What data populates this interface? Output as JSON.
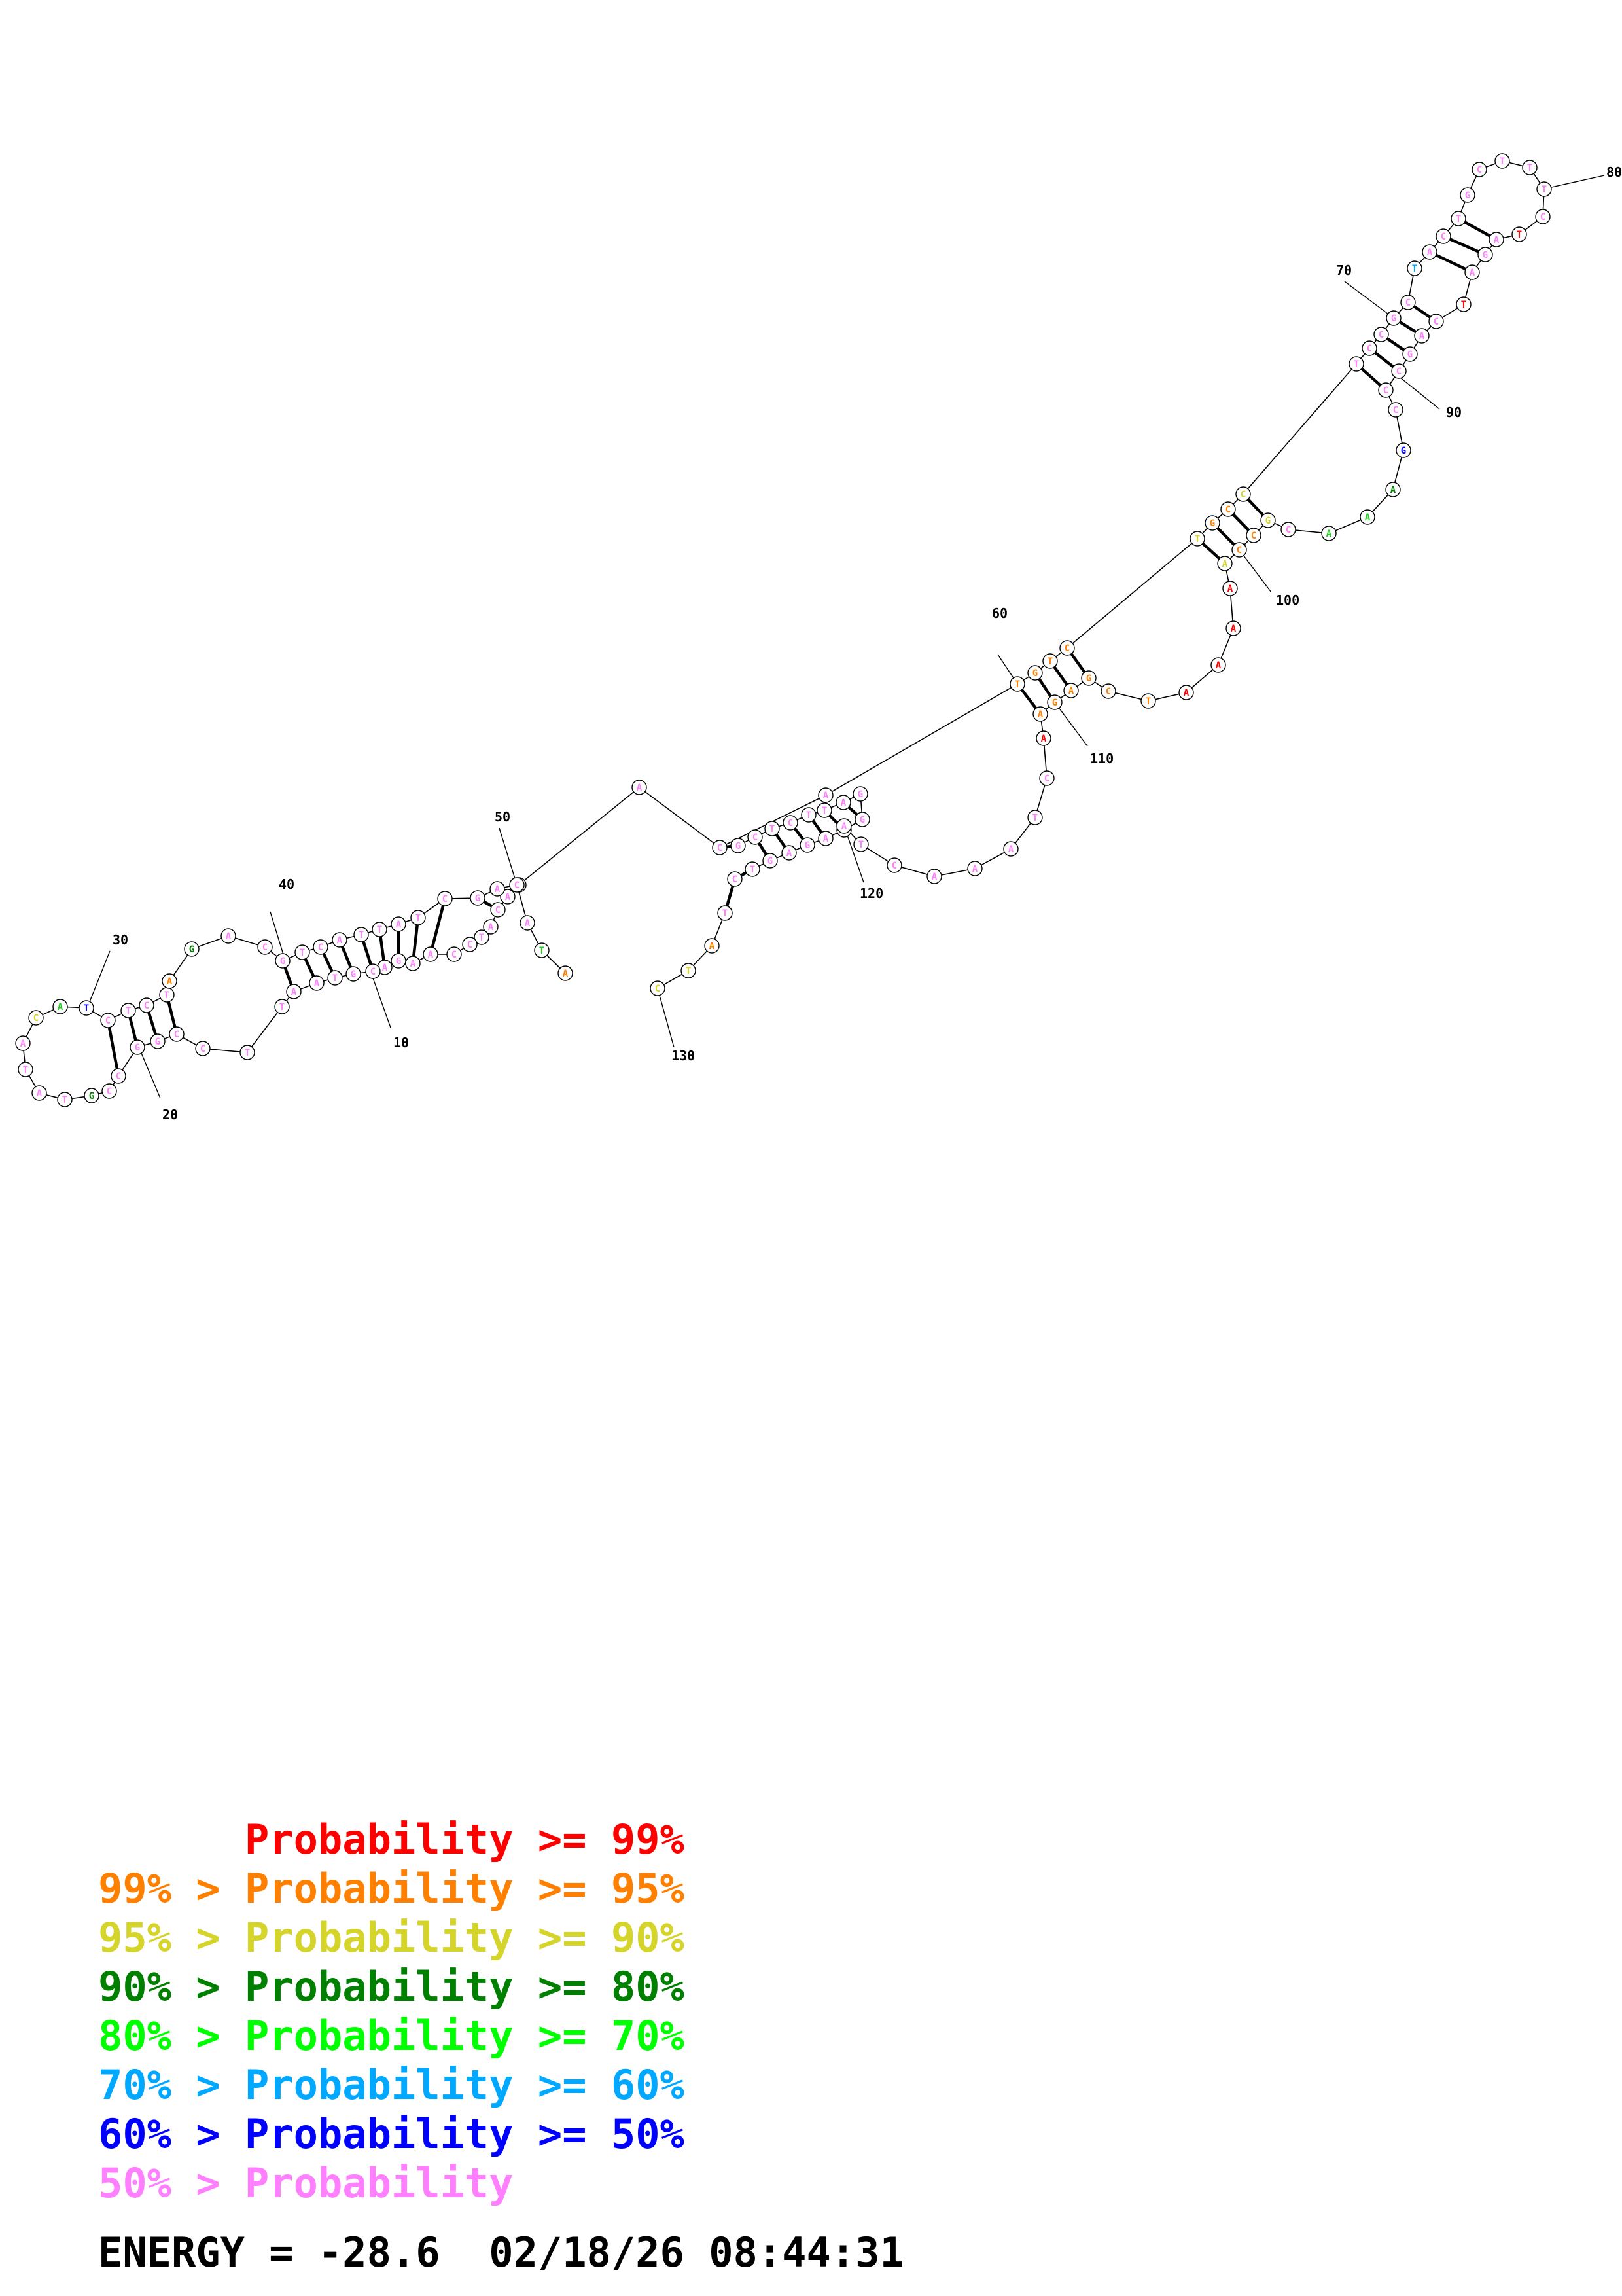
{
  "position_labels": [
    "10",
    "20",
    "30",
    "40",
    "50",
    "60",
    "70",
    "80",
    "90",
    "100",
    "110",
    "120",
    "130"
  ],
  "legend": [
    {
      "range": "",
      "label": "Probability >= 99%",
      "color": "#ff0000"
    },
    {
      "range": "99% > ",
      "label": "Probability >= 95%",
      "color": "#ff8000"
    },
    {
      "range": "95% > ",
      "label": "Probability >= 90%",
      "color": "#d4d42a"
    },
    {
      "range": "90% > ",
      "label": "Probability >= 80%",
      "color": "#008000"
    },
    {
      "range": "80% > ",
      "label": "Probability >= 70%",
      "color": "#00ff00"
    },
    {
      "range": "70% > ",
      "label": "Probability >= 60%",
      "color": "#00a8ff"
    },
    {
      "range": "60% > ",
      "label": "Probability >= 50%",
      "color": "#0000ff"
    },
    {
      "range": "50% > ",
      "label": "Probability",
      "color": "#ff80ff"
    }
  ],
  "energy": {
    "label": "ENERGY = ",
    "value": "-28.6",
    "timestamp": "02/18/26 08:44:31"
  }
}
